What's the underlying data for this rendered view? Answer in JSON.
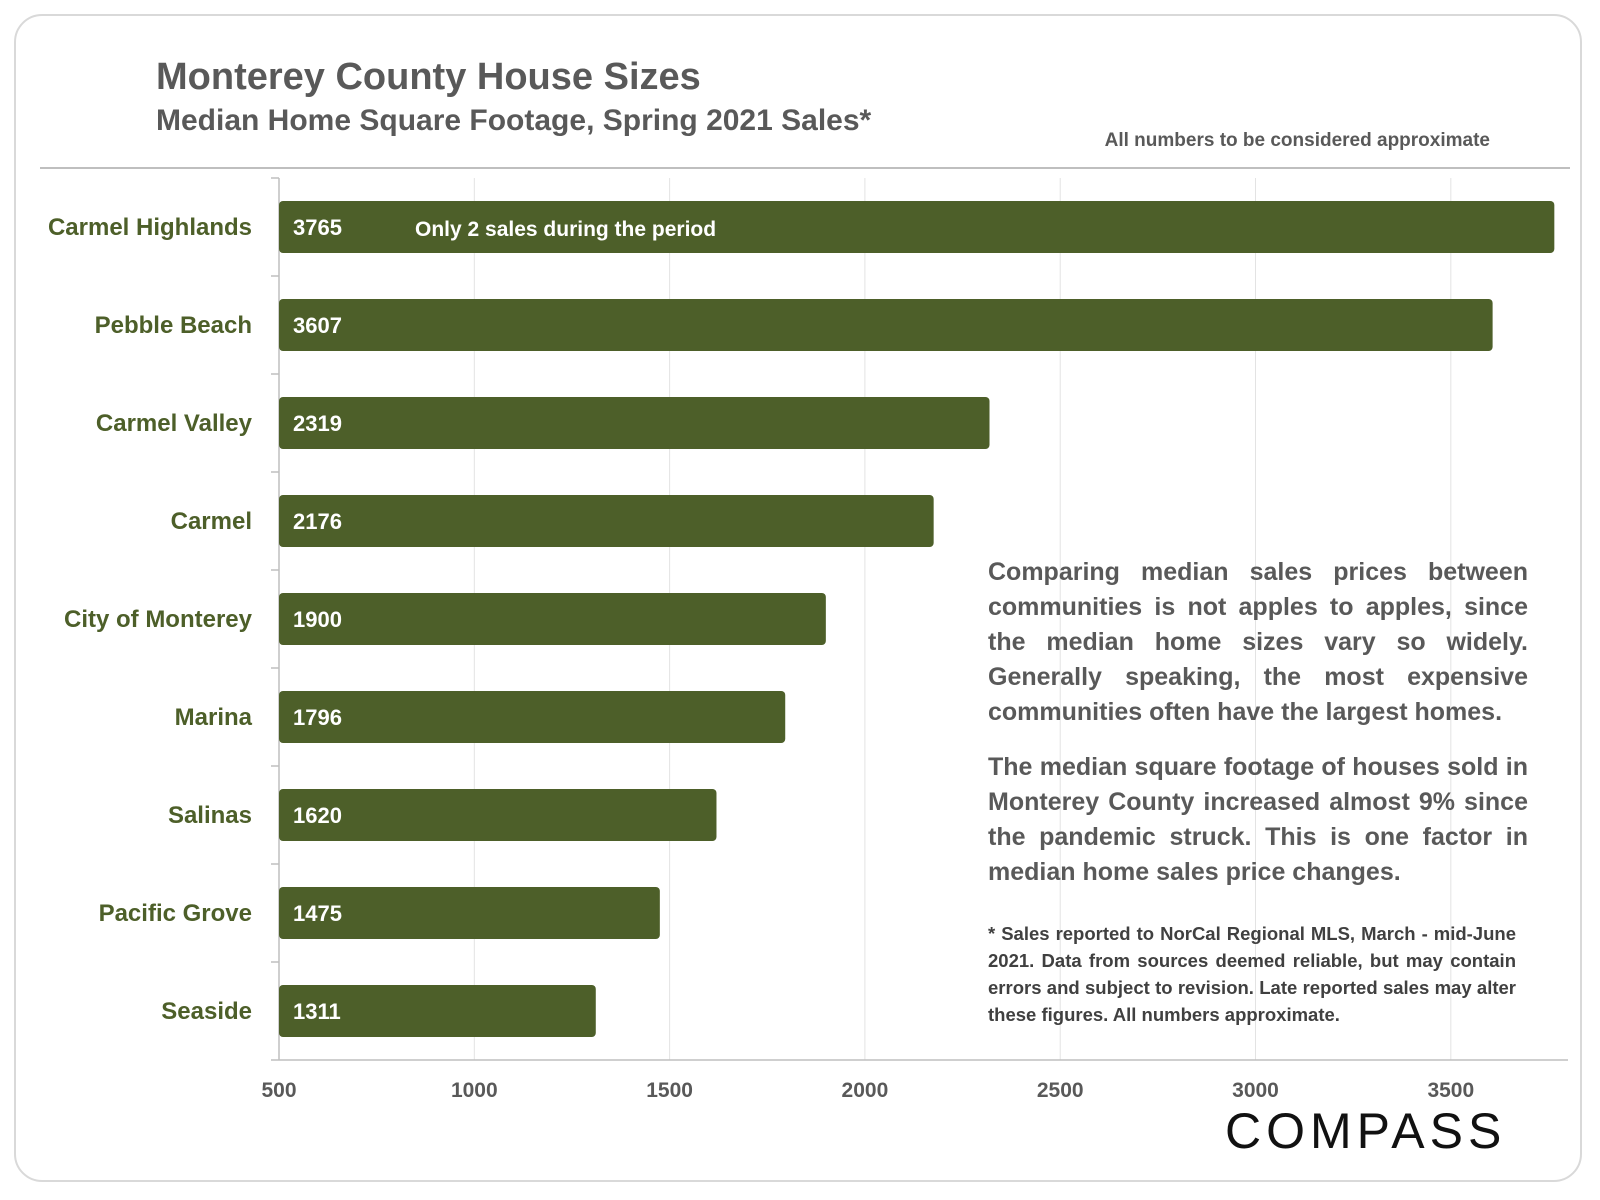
{
  "header": {
    "title": "Monterey County House Sizes",
    "subtitle": "Median Home Square Footage, Spring 2021 Sales*",
    "disclaimer": "All numbers to be considered approximate"
  },
  "chart_data": {
    "type": "bar",
    "orientation": "horizontal",
    "title": "Monterey County House Sizes",
    "subtitle": "Median Home Square Footage, Spring 2021 Sales*",
    "categories": [
      "Carmel Highlands",
      "Pebble Beach",
      "Carmel Valley",
      "Carmel",
      "City of Monterey",
      "Marina",
      "Salinas",
      "Pacific Grove",
      "Seaside"
    ],
    "values": [
      3765,
      3607,
      2319,
      2176,
      1900,
      1796,
      1620,
      1475,
      1311
    ],
    "xlim": [
      500,
      3800
    ],
    "xticks": [
      500,
      1000,
      1500,
      2000,
      2500,
      3000,
      3500
    ],
    "grid": true,
    "bar_color": "#4d5f29",
    "annotations": [
      {
        "category": "Carmel Highlands",
        "text": "Only 2 sales during the period"
      }
    ]
  },
  "commentary": {
    "paragraph1": "Comparing median sales prices between communities is not apples to apples, since the median home sizes vary so widely. Generally speaking, the most expensive communities often have the largest homes.",
    "paragraph2": "The median square footage of houses sold in Monterey County increased almost 9% since the pandemic struck. This is one factor in median home sales price changes."
  },
  "footnote": "* Sales reported to NorCal Regional MLS, March - mid-June 2021. Data from sources deemed reliable, but may contain errors and subject to revision. Late reported sales may alter these figures. All numbers approximate.",
  "logo": {
    "text": "COMPASS"
  }
}
